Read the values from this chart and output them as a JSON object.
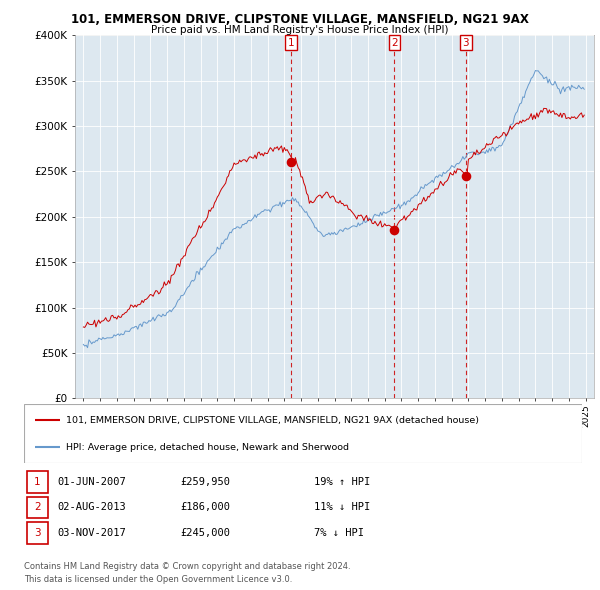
{
  "title": "101, EMMERSON DRIVE, CLIPSTONE VILLAGE, MANSFIELD, NG21 9AX",
  "subtitle": "Price paid vs. HM Land Registry's House Price Index (HPI)",
  "legend_line1": "101, EMMERSON DRIVE, CLIPSTONE VILLAGE, MANSFIELD, NG21 9AX (detached house)",
  "legend_line2": "HPI: Average price, detached house, Newark and Sherwood",
  "footer1": "Contains HM Land Registry data © Crown copyright and database right 2024.",
  "footer2": "This data is licensed under the Open Government Licence v3.0.",
  "transactions": [
    {
      "num": 1,
      "date": "01-JUN-2007",
      "price": "£259,950",
      "change": "19% ↑ HPI"
    },
    {
      "num": 2,
      "date": "02-AUG-2013",
      "price": "£186,000",
      "change": "11% ↓ HPI"
    },
    {
      "num": 3,
      "date": "03-NOV-2017",
      "price": "£245,000",
      "change": "7% ↓ HPI"
    }
  ],
  "sale_dates_decimal": [
    2007.42,
    2013.58,
    2017.83
  ],
  "sale_prices": [
    259950,
    186000,
    245000
  ],
  "hpi_color": "#6699cc",
  "sale_color": "#cc0000",
  "vline_color": "#cc0000",
  "background_color": "#ffffff",
  "plot_bg_color": "#dde8f0",
  "grid_color": "#ffffff",
  "ylim": [
    0,
    400000
  ],
  "xlim_start": 1994.5,
  "xlim_end": 2025.5
}
